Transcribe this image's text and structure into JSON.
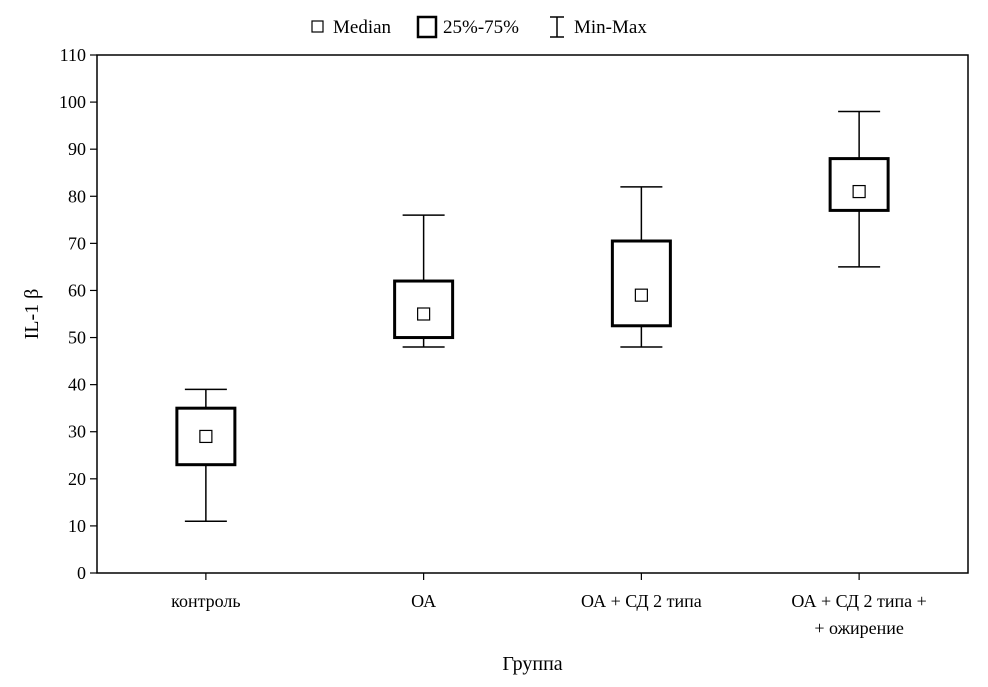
{
  "chart_data": {
    "type": "box",
    "legend": {
      "position": "top-center",
      "entries": [
        {
          "symbol": "median-square",
          "label": "Median"
        },
        {
          "symbol": "box",
          "label": "25%-75%"
        },
        {
          "symbol": "whisker",
          "label": "Min-Max"
        }
      ]
    },
    "xlabel": "Группа",
    "ylabel": "IL-1 β",
    "ylim": [
      0,
      110
    ],
    "yticks": [
      0,
      10,
      20,
      30,
      40,
      50,
      60,
      70,
      80,
      90,
      100,
      110
    ],
    "grid": false,
    "categories": [
      [
        "контроль"
      ],
      [
        "ОА"
      ],
      [
        "ОА + СД 2 типа"
      ],
      [
        "ОА + СД 2 типа +",
        "+ ожирение"
      ]
    ],
    "boxes": [
      {
        "min": 11,
        "q1": 23,
        "median": 29,
        "q3": 35,
        "max": 39
      },
      {
        "min": 48,
        "q1": 50,
        "median": 55,
        "q3": 62,
        "max": 76
      },
      {
        "min": 48,
        "q1": 52.5,
        "median": 59,
        "q3": 70.5,
        "max": 82
      },
      {
        "min": 65,
        "q1": 77,
        "median": 81,
        "q3": 88,
        "max": 98
      }
    ]
  }
}
